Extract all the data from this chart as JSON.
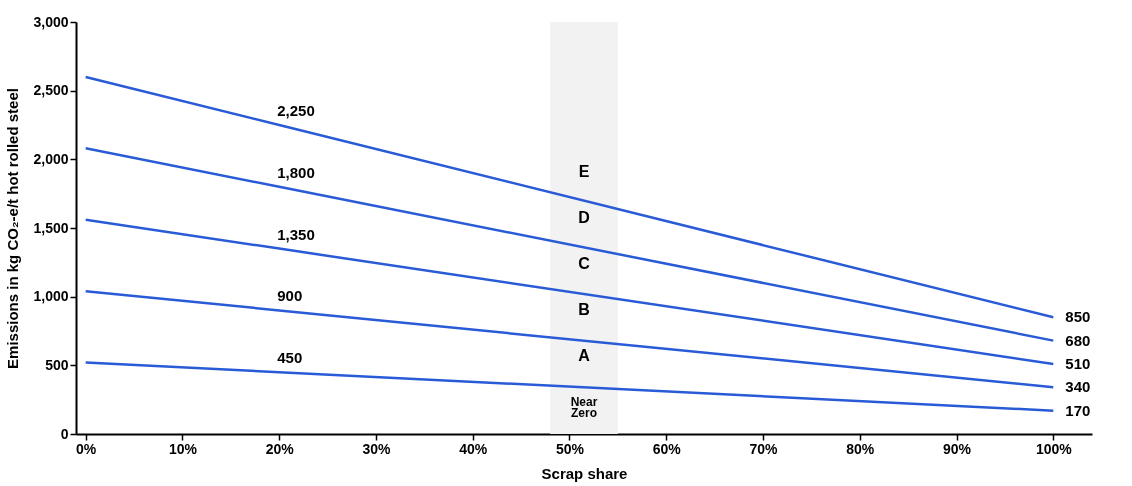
{
  "chart_data": {
    "type": "line",
    "xlabel": "Scrap share",
    "ylabel": "Emissions in kg CO₂-e/t hot rolled steel",
    "xlim": [
      -1,
      104
    ],
    "ylim": [
      0,
      3000
    ],
    "xticks": [
      {
        "value": 0,
        "label": "0%"
      },
      {
        "value": 10,
        "label": "10%"
      },
      {
        "value": 20,
        "label": "20%"
      },
      {
        "value": 30,
        "label": "30%"
      },
      {
        "value": 40,
        "label": "40%"
      },
      {
        "value": 50,
        "label": "50%"
      },
      {
        "value": 60,
        "label": "60%"
      },
      {
        "value": 70,
        "label": "70%"
      },
      {
        "value": 80,
        "label": "80%"
      },
      {
        "value": 90,
        "label": "90%"
      },
      {
        "value": 100,
        "label": "100%"
      }
    ],
    "yticks": [
      {
        "value": 0,
        "label": "0"
      },
      {
        "value": 500,
        "label": "500"
      },
      {
        "value": 1000,
        "label": "1,000"
      },
      {
        "value": 1500,
        "label": "1,500"
      },
      {
        "value": 2000,
        "label": "2,000"
      },
      {
        "value": 2500,
        "label": "2,500"
      },
      {
        "value": 3000,
        "label": "3,000"
      }
    ],
    "marker": "none",
    "line_style": "solid",
    "series": [
      {
        "color": "#2a5bd7",
        "x": [
          0,
          20,
          100
        ],
        "values": [
          2600,
          2250,
          850
        ],
        "value_labels": [
          null,
          "2,250",
          "850"
        ]
      },
      {
        "color": "#2a5bd7",
        "x": [
          0,
          20,
          100
        ],
        "values": [
          2080,
          1800,
          680
        ],
        "value_labels": [
          null,
          "1,800",
          "680"
        ]
      },
      {
        "color": "#2a5bd7",
        "x": [
          0,
          20,
          100
        ],
        "values": [
          1560,
          1350,
          510
        ],
        "value_labels": [
          null,
          "1,350",
          "510"
        ]
      },
      {
        "color": "#2a5bd7",
        "x": [
          0,
          20,
          100
        ],
        "values": [
          1040,
          900,
          340
        ],
        "value_labels": [
          null,
          "900",
          "340"
        ]
      },
      {
        "color": "#2a5bd7",
        "x": [
          0,
          20,
          100
        ],
        "values": [
          520,
          450,
          170
        ],
        "value_labels": [
          null,
          "450",
          "170"
        ]
      }
    ],
    "bands": [
      {
        "axis": "x",
        "from": 48,
        "to": 55,
        "color": "#f2f2f2"
      }
    ],
    "annotations": [
      "E",
      "D",
      "C",
      "B",
      "A",
      "Near Zero"
    ]
  }
}
